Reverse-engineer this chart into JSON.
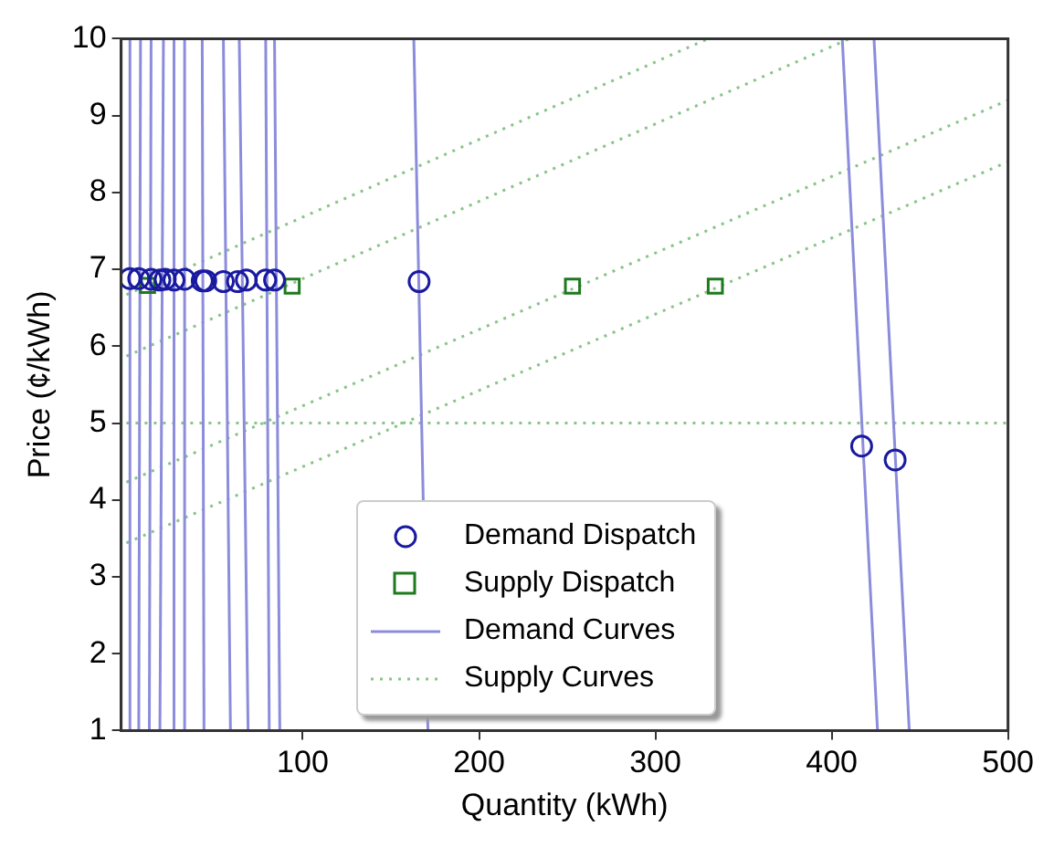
{
  "chart_data": {
    "type": "scatter",
    "xlabel": "Quantity (kWh)",
    "ylabel": "Price (¢/kWh)",
    "xlim": [
      -3,
      500
    ],
    "xticks": [
      100,
      200,
      300,
      400,
      500
    ],
    "ylim": [
      1,
      10
    ],
    "yticks": [
      1,
      2,
      3,
      4,
      5,
      6,
      7,
      8,
      9,
      10
    ],
    "grid": false,
    "legend": "bottom",
    "series": [
      {
        "type": "scatter",
        "name": "Demand Dispatch",
        "color": "#1a1aa0",
        "marker": "circle",
        "x": [
          2,
          7,
          14,
          19,
          22,
          27,
          33,
          43,
          45,
          55,
          63,
          68,
          79,
          84,
          166,
          417,
          436
        ],
        "values": [
          6.88,
          6.88,
          6.87,
          6.86,
          6.87,
          6.86,
          6.87,
          6.85,
          6.85,
          6.84,
          6.84,
          6.86,
          6.86,
          6.86,
          6.84,
          4.7,
          4.52
        ]
      },
      {
        "type": "scatter",
        "name": "Supply Dispatch",
        "color": "#1e7a1e",
        "marker": "square",
        "x": [
          12,
          94,
          253,
          334
        ],
        "values": [
          6.79,
          6.78,
          6.78,
          6.78
        ]
      },
      {
        "type": "line",
        "name": "Demand Curves",
        "color": "#8c8cdc",
        "marker": "none",
        "line_style": "solid",
        "x": [
          2,
          2
        ],
        "values": [
          10,
          1
        ]
      },
      {
        "type": "line",
        "color": "#8c8cdc",
        "marker": "none",
        "line_style": "solid",
        "x": [
          8,
          7
        ],
        "values": [
          10,
          1
        ]
      },
      {
        "type": "line",
        "color": "#8c8cdc",
        "marker": "none",
        "line_style": "solid",
        "x": [
          14,
          13
        ],
        "values": [
          10,
          1
        ]
      },
      {
        "type": "line",
        "color": "#8c8cdc",
        "marker": "none",
        "line_style": "solid",
        "x": [
          21,
          19
        ],
        "values": [
          10,
          1
        ]
      },
      {
        "type": "line",
        "color": "#8c8cdc",
        "marker": "none",
        "line_style": "solid",
        "x": [
          27,
          27
        ],
        "values": [
          10,
          1
        ]
      },
      {
        "type": "line",
        "color": "#8c8cdc",
        "marker": "none",
        "line_style": "solid",
        "x": [
          33,
          33
        ],
        "values": [
          10,
          1
        ]
      },
      {
        "type": "line",
        "color": "#8c8cdc",
        "marker": "none",
        "line_style": "solid",
        "x": [
          43,
          44
        ],
        "values": [
          10,
          1
        ]
      },
      {
        "type": "line",
        "color": "#8c8cdc",
        "marker": "none",
        "line_style": "solid",
        "x": [
          55,
          59
        ],
        "values": [
          10,
          1
        ]
      },
      {
        "type": "line",
        "color": "#8c8cdc",
        "marker": "none",
        "line_style": "solid",
        "x": [
          64,
          69
        ],
        "values": [
          10,
          1
        ]
      },
      {
        "type": "line",
        "color": "#8c8cdc",
        "marker": "none",
        "line_style": "solid",
        "x": [
          79,
          81
        ],
        "values": [
          10,
          1
        ]
      },
      {
        "type": "line",
        "color": "#8c8cdc",
        "marker": "none",
        "line_style": "solid",
        "x": [
          84,
          87
        ],
        "values": [
          10,
          1
        ]
      },
      {
        "type": "line",
        "color": "#8c8cdc",
        "marker": "none",
        "line_style": "solid",
        "x": [
          163,
          171
        ],
        "values": [
          10,
          1
        ]
      },
      {
        "type": "line",
        "color": "#8c8cdc",
        "marker": "none",
        "line_style": "solid",
        "x": [
          406,
          426
        ],
        "values": [
          10,
          1
        ]
      },
      {
        "type": "line",
        "color": "#8c8cdc",
        "marker": "none",
        "line_style": "solid",
        "x": [
          424,
          444
        ],
        "values": [
          10,
          1
        ]
      },
      {
        "type": "line",
        "name": "Supply Curves",
        "color": "#88c488",
        "marker": "none",
        "line_style": "dotted",
        "x": [
          0,
          330
        ],
        "values": [
          6.67,
          10
        ]
      },
      {
        "type": "line",
        "color": "#88c488",
        "marker": "none",
        "line_style": "dotted",
        "x": [
          0,
          410
        ],
        "values": [
          5.87,
          10
        ]
      },
      {
        "type": "line",
        "color": "#88c488",
        "marker": "none",
        "line_style": "dotted",
        "x": [
          0,
          500
        ],
        "values": [
          5,
          5
        ]
      },
      {
        "type": "line",
        "color": "#88c488",
        "marker": "none",
        "line_style": "dotted",
        "x": [
          0,
          500
        ],
        "values": [
          4.23,
          9.2
        ]
      },
      {
        "type": "line",
        "color": "#88c488",
        "marker": "none",
        "line_style": "dotted",
        "x": [
          0,
          500
        ],
        "values": [
          3.44,
          8.4
        ]
      }
    ]
  }
}
